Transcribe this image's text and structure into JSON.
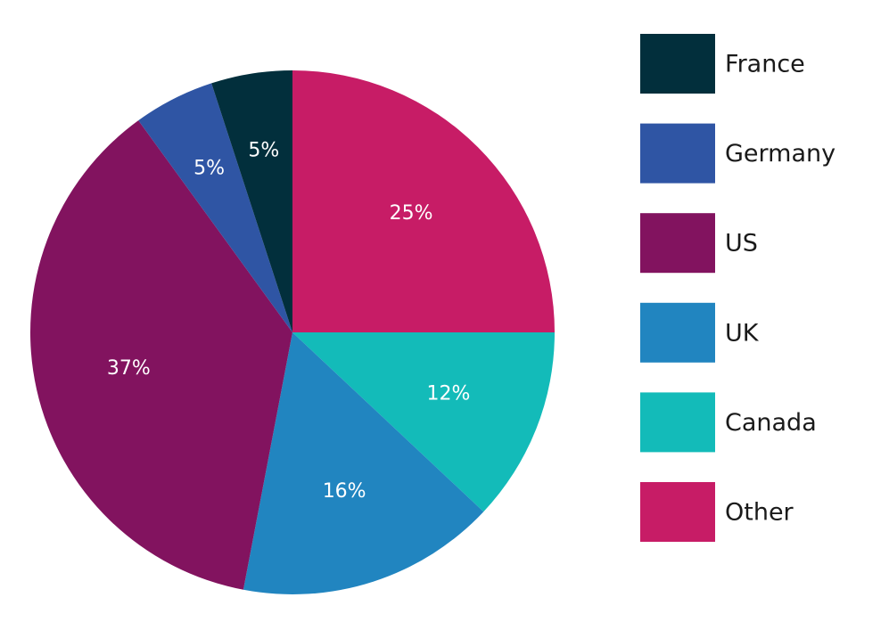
{
  "chart_data": {
    "type": "pie",
    "categories": [
      "Other",
      "Canada",
      "UK",
      "US",
      "Germany",
      "France"
    ],
    "values": [
      25,
      12,
      16,
      37,
      5,
      5
    ],
    "value_labels": [
      "25%",
      "12%",
      "16%",
      "37%",
      "5%",
      "5%"
    ],
    "colors": [
      "#c71c66",
      "#13bbb9",
      "#2185c0",
      "#82135f",
      "#2f55a4",
      "#022f3c"
    ],
    "legend": "right"
  }
}
